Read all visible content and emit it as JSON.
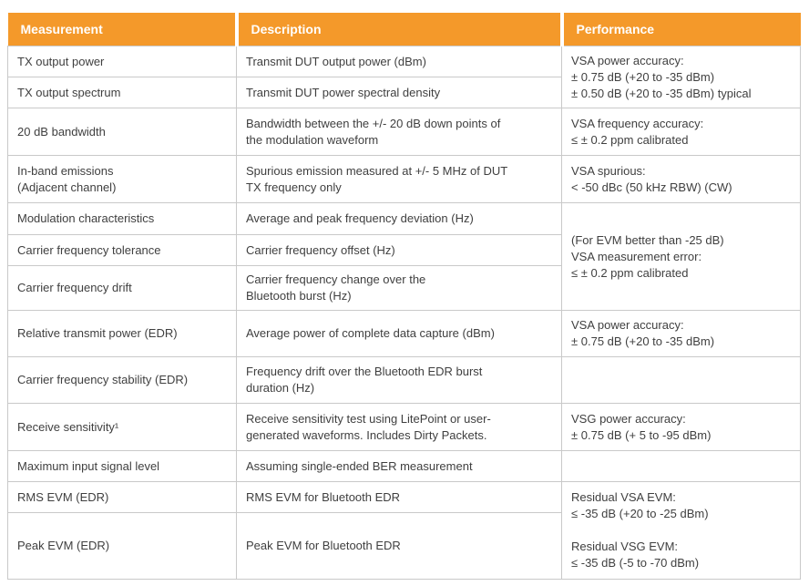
{
  "table": {
    "accent_color": "#F4992A",
    "border_color": "#C9C9C9",
    "header_text_color": "#FFFFFF",
    "body_text_color": "#3F3F3F",
    "headers": {
      "measurement": "Measurement",
      "description": "Description",
      "performance": "Performance"
    },
    "rows": [
      {
        "measurement": "TX output power",
        "description": "Transmit DUT output power (dBm)",
        "performance": "VSA power accuracy:\n± 0.75 dB (+20 to -35 dBm)\n± 0.50 dB (+20 to -35 dBm) typical"
      },
      {
        "measurement": "TX output spectrum",
        "description": "Transmit DUT power spectral density"
      },
      {
        "measurement": "20 dB bandwidth",
        "description": "Bandwidth between the +/- 20 dB down points of\nthe modulation waveform",
        "performance": "VSA frequency accuracy:\n≤ ± 0.2 ppm calibrated"
      },
      {
        "measurement": "In-band emissions\n(Adjacent channel)",
        "description": "Spurious emission measured at +/- 5 MHz of DUT\nTX frequency only",
        "performance": "VSA spurious:\n< -50 dBc (50 kHz RBW) (CW)"
      },
      {
        "measurement": "Modulation characteristics",
        "description": "Average and peak frequency deviation (Hz)",
        "performance": "(For EVM better than -25 dB)\nVSA measurement error:\n≤ ± 0.2 ppm calibrated"
      },
      {
        "measurement": "Carrier frequency tolerance",
        "description": "Carrier frequency offset (Hz)"
      },
      {
        "measurement": "Carrier frequency drift",
        "description": "Carrier frequency change over the\nBluetooth burst (Hz)"
      },
      {
        "measurement": "Relative transmit power (EDR)",
        "description": "Average power of complete data capture (dBm)",
        "performance": "VSA power accuracy:\n± 0.75 dB (+20 to -35 dBm)"
      },
      {
        "measurement": "Carrier frequency stability (EDR)",
        "description": "Frequency drift over the Bluetooth EDR burst\nduration (Hz)",
        "performance": ""
      },
      {
        "measurement": "Receive sensitivity¹",
        "description": "Receive sensitivity test using LitePoint or user-\ngenerated waveforms. Includes Dirty Packets.",
        "performance": "VSG power accuracy:\n± 0.75 dB (+ 5 to -95 dBm)"
      },
      {
        "measurement": "Maximum input signal level",
        "description": "Assuming single-ended BER measurement",
        "performance": ""
      },
      {
        "measurement": "RMS EVM (EDR)",
        "description": "RMS EVM for Bluetooth EDR",
        "performance": "Residual VSA EVM:\n≤ -35 dB (+20 to -25 dBm)\n\nResidual VSG EVM:\n≤ -35 dB (-5 to -70 dBm)"
      },
      {
        "measurement": "Peak EVM (EDR)",
        "description": "Peak EVM for Bluetooth EDR"
      }
    ]
  }
}
